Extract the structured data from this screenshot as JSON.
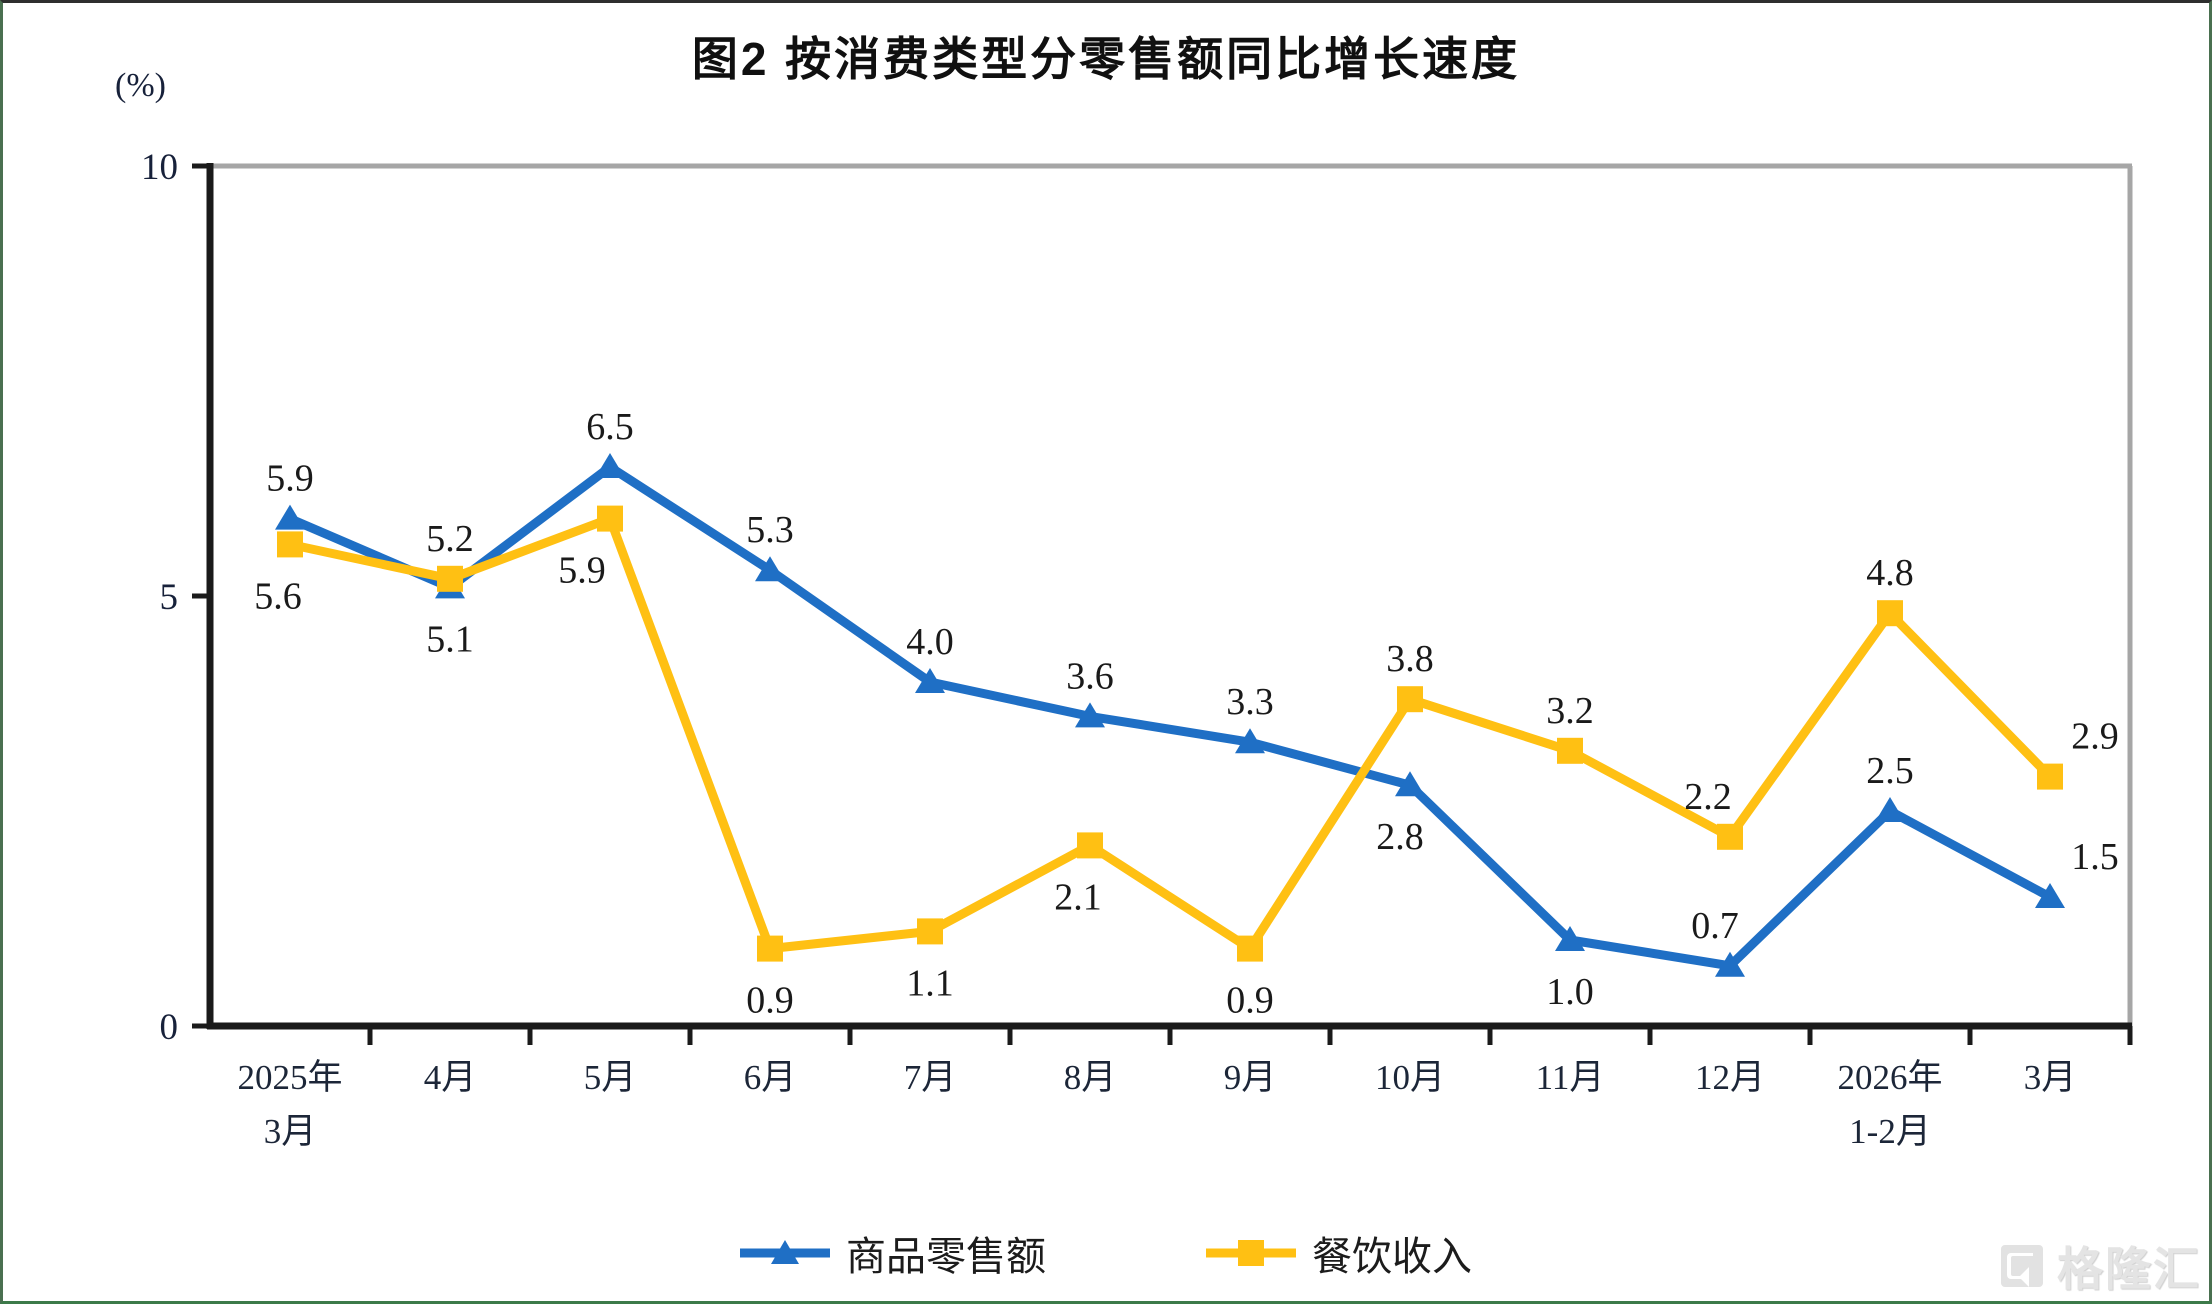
{
  "page": {
    "watermark": "格隆汇"
  },
  "chart_data": {
    "type": "line",
    "title": "图2 按消费类型分零售额同比增长速度",
    "y_unit": "(%)",
    "ylim": [
      0,
      10
    ],
    "yticks": [
      0,
      5,
      10
    ],
    "grid": false,
    "legend_position": "bottom",
    "categories": [
      "2025年\n3月",
      "4月",
      "5月",
      "6月",
      "7月",
      "8月",
      "9月",
      "10月",
      "11月",
      "12月",
      "2026年\n1-2月",
      "3月"
    ],
    "series": [
      {
        "name": "商品零售额",
        "color": "#1F6FC5",
        "marker": "triangle",
        "values": [
          5.9,
          5.1,
          6.5,
          5.3,
          4.0,
          3.6,
          3.3,
          2.8,
          1.0,
          0.7,
          2.5,
          1.5
        ],
        "labels": [
          "5.9",
          "5.1",
          "6.5",
          "5.3",
          "4.0",
          "3.6",
          "3.3",
          "2.8",
          "1.0",
          "0.7",
          "2.5",
          "1.5"
        ],
        "label_sides": [
          "above",
          "below",
          "above",
          "above",
          "above",
          "above",
          "above",
          "below",
          "below",
          "above",
          "above",
          "above"
        ],
        "label_dx": [
          0,
          0,
          0,
          0,
          0,
          0,
          0,
          -10,
          0,
          -15,
          0,
          45
        ]
      },
      {
        "name": "餐饮收入",
        "color": "#FFC013",
        "marker": "square",
        "values": [
          5.6,
          5.2,
          5.9,
          0.9,
          1.1,
          2.1,
          0.9,
          3.8,
          3.2,
          2.2,
          4.8,
          2.9
        ],
        "labels": [
          "5.6",
          "5.2",
          "5.9",
          "0.9",
          "1.1",
          "2.1",
          "0.9",
          "3.8",
          "3.2",
          "2.2",
          "4.8",
          "2.9"
        ],
        "label_sides": [
          "below",
          "above",
          "below",
          "below",
          "below",
          "below",
          "below",
          "above",
          "above",
          "above",
          "above",
          "above"
        ],
        "label_dx": [
          -12,
          0,
          -28,
          0,
          0,
          -12,
          0,
          0,
          0,
          -22,
          0,
          45
        ]
      }
    ],
    "axis_colors": {
      "axis": "#1a1a1a",
      "frame": "#a6a6a6"
    }
  }
}
